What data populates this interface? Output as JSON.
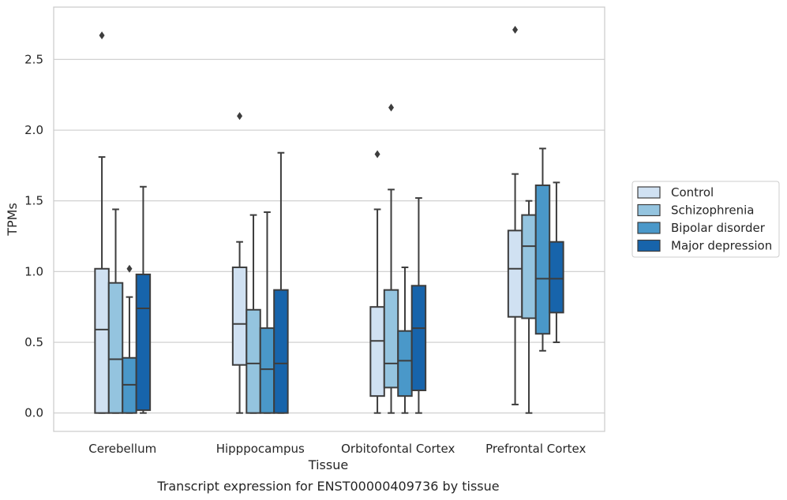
{
  "chart_data": {
    "type": "box",
    "xlabel": "Tissue",
    "ylabel": "TPMs",
    "caption": "Transcript expression for ENST00000409736 by tissue",
    "ylim": [
      -0.13,
      2.87
    ],
    "yticks": [
      0.0,
      0.5,
      1.0,
      1.5,
      2.0,
      2.5
    ],
    "ytick_labels": [
      "0.0",
      "0.5",
      "1.0",
      "1.5",
      "2.0",
      "2.5"
    ],
    "grid": "horizontal",
    "legend_position": "right",
    "categories": [
      "Cerebellum",
      "Hipppocampus",
      "Orbitofontal Cortex",
      "Prefrontal Cortex"
    ],
    "series": [
      {
        "name": "Control",
        "color": "#d0e1f2",
        "boxes": [
          {
            "whisker_low": 0.0,
            "q1": 0.0,
            "median": 0.59,
            "q3": 1.02,
            "whisker_high": 1.81,
            "outliers": [
              2.67
            ]
          },
          {
            "whisker_low": 0.0,
            "q1": 0.34,
            "median": 0.63,
            "q3": 1.03,
            "whisker_high": 1.21,
            "outliers": [
              2.1
            ]
          },
          {
            "whisker_low": 0.0,
            "q1": 0.12,
            "median": 0.51,
            "q3": 0.75,
            "whisker_high": 1.44,
            "outliers": [
              1.83
            ]
          },
          {
            "whisker_low": 0.06,
            "q1": 0.68,
            "median": 1.02,
            "q3": 1.29,
            "whisker_high": 1.69,
            "outliers": [
              2.71
            ]
          }
        ]
      },
      {
        "name": "Schizophrenia",
        "color": "#94c4df",
        "boxes": [
          {
            "whisker_low": 0.0,
            "q1": 0.0,
            "median": 0.38,
            "q3": 0.92,
            "whisker_high": 1.44,
            "outliers": []
          },
          {
            "whisker_low": 0.0,
            "q1": 0.0,
            "median": 0.35,
            "q3": 0.73,
            "whisker_high": 1.4,
            "outliers": []
          },
          {
            "whisker_low": 0.0,
            "q1": 0.18,
            "median": 0.35,
            "q3": 0.87,
            "whisker_high": 1.58,
            "outliers": [
              2.16
            ]
          },
          {
            "whisker_low": 0.0,
            "q1": 0.67,
            "median": 1.18,
            "q3": 1.4,
            "whisker_high": 1.5,
            "outliers": []
          }
        ]
      },
      {
        "name": "Bipolar disorder",
        "color": "#4a98c9",
        "boxes": [
          {
            "whisker_low": 0.0,
            "q1": 0.0,
            "median": 0.2,
            "q3": 0.39,
            "whisker_high": 0.82,
            "outliers": [
              1.02
            ]
          },
          {
            "whisker_low": 0.0,
            "q1": 0.0,
            "median": 0.31,
            "q3": 0.6,
            "whisker_high": 1.42,
            "outliers": []
          },
          {
            "whisker_low": 0.0,
            "q1": 0.12,
            "median": 0.37,
            "q3": 0.58,
            "whisker_high": 1.03,
            "outliers": []
          },
          {
            "whisker_low": 0.44,
            "q1": 0.56,
            "median": 0.95,
            "q3": 1.61,
            "whisker_high": 1.87,
            "outliers": []
          }
        ]
      },
      {
        "name": "Major depression",
        "color": "#1764ab",
        "boxes": [
          {
            "whisker_low": 0.0,
            "q1": 0.02,
            "median": 0.74,
            "q3": 0.98,
            "whisker_high": 1.6,
            "outliers": []
          },
          {
            "whisker_low": 0.0,
            "q1": 0.0,
            "median": 0.35,
            "q3": 0.87,
            "whisker_high": 1.84,
            "outliers": []
          },
          {
            "whisker_low": 0.0,
            "q1": 0.16,
            "median": 0.6,
            "q3": 0.9,
            "whisker_high": 1.52,
            "outliers": []
          },
          {
            "whisker_low": 0.5,
            "q1": 0.71,
            "median": 0.95,
            "q3": 1.21,
            "whisker_high": 1.63,
            "outliers": []
          }
        ]
      }
    ]
  }
}
